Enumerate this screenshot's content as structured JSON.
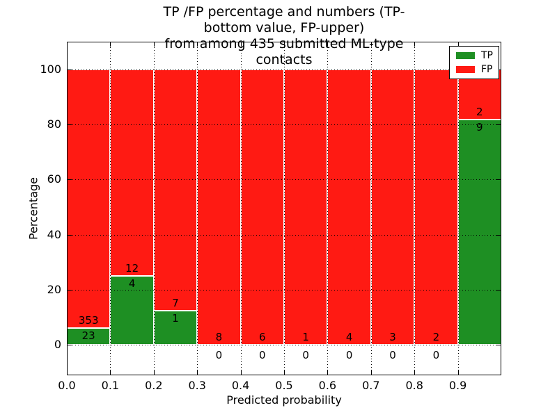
{
  "chart_data": {
    "type": "bar",
    "stacked": true,
    "title": "TP /FP percentage and numbers (TP-bottom value, FP-upper)\nfrom among 435 submitted ML-type contacts",
    "xlabel": "Predicted probability",
    "ylabel": "Percentage",
    "xlim": [
      0.0,
      1.0
    ],
    "ylim": [
      -11,
      110
    ],
    "bin_width": 0.1,
    "x_tick_labels": [
      "0.0",
      "0.1",
      "0.2",
      "0.3",
      "0.4",
      "0.5",
      "0.6",
      "0.7",
      "0.8",
      "0.9"
    ],
    "y_ticks": [
      0,
      20,
      40,
      60,
      80,
      100
    ],
    "grid": "dotted",
    "legend": {
      "position": "upper right"
    },
    "series": [
      {
        "name": "TP",
        "color": "#1e8f23",
        "counts": [
          23,
          4,
          1,
          0,
          0,
          0,
          0,
          0,
          0,
          9
        ],
        "pct_heights": [
          6.1,
          25.0,
          12.5,
          0,
          0,
          0,
          0,
          0,
          0,
          81.8
        ]
      },
      {
        "name": "FP",
        "color": "#ff1a13",
        "counts": [
          353,
          12,
          7,
          8,
          6,
          1,
          4,
          3,
          2,
          2
        ],
        "pct_heights": [
          93.9,
          75.0,
          87.5,
          100,
          100,
          100,
          100,
          100,
          100,
          18.2
        ]
      }
    ]
  }
}
